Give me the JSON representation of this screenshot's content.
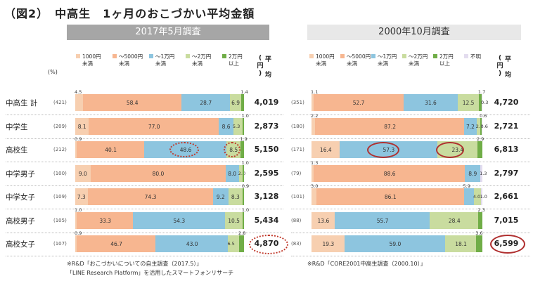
{
  "title": "（図2）　中高生　1ヶ月のおこづかい平均金額",
  "headers": {
    "left": "2017年5月調査",
    "right": "2000年10月調査"
  },
  "pct_label": "(%)",
  "avg_header": {
    "circ_open": "(",
    "en": "円",
    "circ_close": ")",
    "avg1": "平",
    "avg2": "均"
  },
  "legend_left": [
    {
      "label1": "1000円",
      "label2": "未満",
      "color": "#f7cfb0"
    },
    {
      "label1": "～5000円",
      "label2": "未満",
      "color": "#f7b690"
    },
    {
      "label1": "～1万円",
      "label2": "未満",
      "color": "#8dc5df"
    },
    {
      "label1": "～2万円",
      "label2": "未満",
      "color": "#c9dc9f"
    },
    {
      "label1": "2万円",
      "label2": "以上",
      "color": "#70ad47"
    }
  ],
  "legend_right": [
    {
      "label1": "1000円",
      "label2": "未満",
      "color": "#f7cfb0"
    },
    {
      "label1": "～5000円",
      "label2": "未満",
      "color": "#f7b690"
    },
    {
      "label1": "～1万円",
      "label2": "未満",
      "color": "#8dc5df"
    },
    {
      "label1": "～2万円",
      "label2": "未満",
      "color": "#c9dc9f"
    },
    {
      "label1": "2万円",
      "label2": "以上",
      "color": "#70ad47"
    },
    {
      "label1": "不明",
      "label2": "",
      "color": "#e3dcef"
    }
  ],
  "notes": {
    "left1": "※R&D「おこづかいについての自主調査（2017.5）」",
    "left2": "「LINE Research Platform」を活用したスマートフォンリサーチ",
    "right1": "※R&D「CORE2001中高生調査（2000.10）」"
  },
  "chart_data": [
    {
      "type": "bar",
      "title": "2017年5月調査",
      "stacked": true,
      "categories": [
        "中高生 計",
        "中学生",
        "高校生",
        "中学男子",
        "中学女子",
        "高校男子",
        "高校女子"
      ],
      "n": [
        "(421)",
        "(209)",
        "(212)",
        "(100)",
        "(109)",
        "(105)",
        "(107)"
      ],
      "series": [
        {
          "name": "1000円未満",
          "values": [
            4.5,
            8.1,
            0.9,
            9.0,
            7.3,
            1.0,
            0.9
          ]
        },
        {
          "name": "～5000円未満",
          "values": [
            58.4,
            77.0,
            40.1,
            80.0,
            74.3,
            33.3,
            46.7
          ]
        },
        {
          "name": "～1万円未満",
          "values": [
            28.7,
            8.6,
            48.6,
            8.0,
            9.2,
            54.3,
            43.0
          ]
        },
        {
          "name": "～2万円未満",
          "values": [
            6.9,
            5.3,
            8.5,
            2.0,
            8.3,
            10.5,
            6.5
          ]
        },
        {
          "name": "2万円以上",
          "values": [
            1.4,
            1.0,
            1.9,
            1.0,
            0.9,
            1.0,
            2.8
          ]
        }
      ],
      "averages": [
        "4,019",
        "2,873",
        "5,150",
        "2,595",
        "3,128",
        "5,434",
        "4,870"
      ],
      "xlim": [
        0,
        100
      ]
    },
    {
      "type": "bar",
      "title": "2000年10月調査",
      "stacked": true,
      "categories": [
        "中高生 計",
        "中学生",
        "高校生",
        "中学男子",
        "中学女子",
        "高校男子",
        "高校女子"
      ],
      "n": [
        "(351)",
        "(180)",
        "(171)",
        "(79)",
        "(101)",
        "(88)",
        "(83)"
      ],
      "series": [
        {
          "name": "1000円未満",
          "values": [
            1.1,
            2.2,
            16.4,
            1.3,
            3.0,
            13.6,
            19.3
          ]
        },
        {
          "name": "～5000円未満",
          "values": [
            52.7,
            87.2,
            0,
            88.6,
            86.1,
            0,
            0
          ]
        },
        {
          "name": "～1万円未満",
          "values": [
            31.6,
            7.2,
            57.3,
            8.9,
            5.9,
            55.7,
            59.0
          ]
        },
        {
          "name": "～2万円未満",
          "values": [
            12.5,
            2.2,
            23.4,
            0,
            4.0,
            28.4,
            18.1
          ]
        },
        {
          "name": "2万円以上",
          "values": [
            1.7,
            0.6,
            2.9,
            0,
            0,
            2.3,
            3.6
          ]
        },
        {
          "name": "不明",
          "values": [
            0.3,
            0.6,
            0,
            1.3,
            1.0,
            0,
            0
          ]
        }
      ],
      "averages": [
        "4,720",
        "2,721",
        "6,813",
        "2,797",
        "2,661",
        "7,015",
        "6,599"
      ],
      "xlim": [
        0,
        100
      ]
    }
  ]
}
